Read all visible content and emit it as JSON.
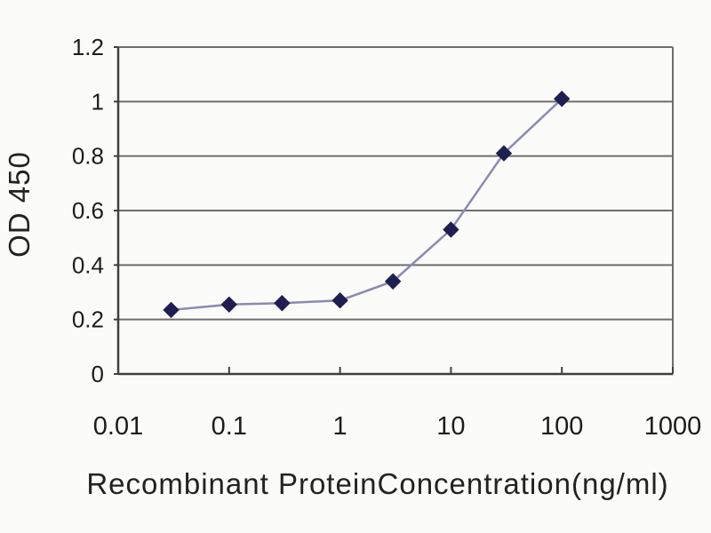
{
  "chart_data": {
    "type": "line",
    "title": "",
    "xlabel": "Recombinant ProteinConcentration(ng/ml)",
    "ylabel": "OD 450",
    "x_scale": "log",
    "y_scale": "linear",
    "xlim": [
      0.01,
      1000
    ],
    "ylim": [
      0,
      1.2
    ],
    "grid": "horizontal",
    "legend_position": "none",
    "series": [
      {
        "name": "OD 450",
        "x": [
          0.03,
          0.1,
          0.3,
          1,
          3,
          10,
          30,
          100
        ],
        "y": [
          0.235,
          0.255,
          0.26,
          0.27,
          0.34,
          0.53,
          0.81,
          1.01
        ],
        "marker": "diamond"
      }
    ],
    "x_tick_values": [
      0.01,
      0.1,
      1,
      10,
      100,
      1000
    ],
    "x_tick_labels": [
      "0.01",
      "0.1",
      "1",
      "10",
      "100",
      "1000"
    ],
    "y_tick_values": [
      0,
      0.2,
      0.4,
      0.6,
      0.8,
      1,
      1.2
    ],
    "y_tick_labels": [
      "0",
      "0.2",
      "0.4",
      "0.6",
      "0.8",
      "1",
      "1.2"
    ],
    "colors": {
      "line": "#8a8ab4",
      "marker": "#1e1e50",
      "grid": "#6e6e6e",
      "axis": "#3f3f3f",
      "text": "#1c1c1c",
      "background": "#fbfbf9"
    }
  }
}
